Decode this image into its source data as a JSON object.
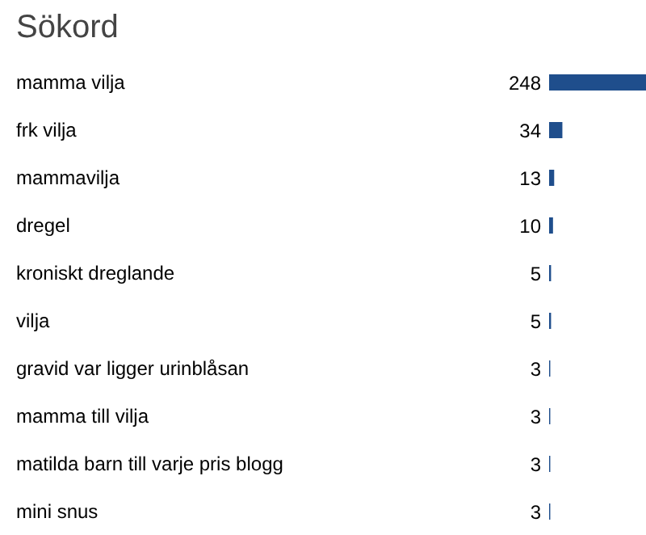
{
  "chart_data": {
    "type": "bar",
    "orientation": "horizontal",
    "title": "Sökord",
    "categories": [
      "mamma vilja",
      "frk vilja",
      "mammavilja",
      "dregel",
      "kroniskt dreglande",
      "vilja",
      "gravid var ligger urinblåsan",
      "mamma till vilja",
      "matilda barn till varje pris blogg",
      "mini snus"
    ],
    "values": [
      248,
      34,
      13,
      10,
      5,
      5,
      3,
      3,
      3,
      3
    ],
    "color": "#1f4e8c",
    "data_labels": true,
    "xlim": [
      0,
      248
    ],
    "tick_labels": "y"
  }
}
